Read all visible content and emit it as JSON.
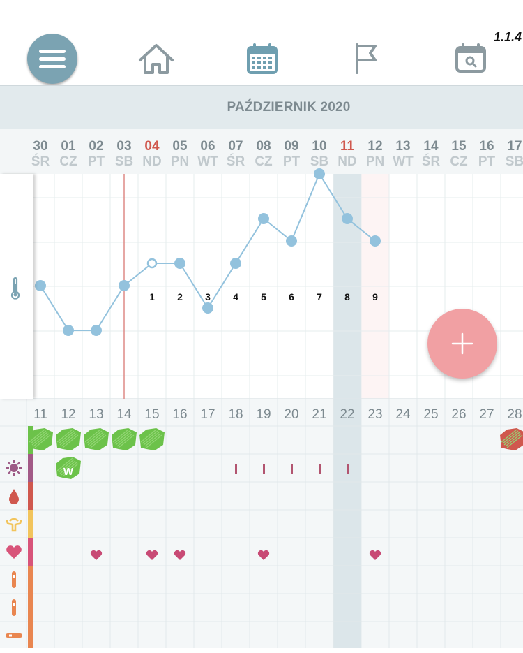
{
  "app": {
    "version": "1.1.4"
  },
  "nav": {
    "items": [
      "menu-icon",
      "home-icon",
      "calendar-icon",
      "flag-icon",
      "calendar-search-icon"
    ]
  },
  "month": {
    "label": "PAŹDZIERNIK 2020"
  },
  "days": [
    {
      "num": "30",
      "name": "ŚR"
    },
    {
      "num": "01",
      "name": "CZ"
    },
    {
      "num": "02",
      "name": "PT"
    },
    {
      "num": "03",
      "name": "SB"
    },
    {
      "num": "04",
      "name": "ND",
      "red": true
    },
    {
      "num": "05",
      "name": "PN"
    },
    {
      "num": "06",
      "name": "WT"
    },
    {
      "num": "07",
      "name": "ŚR"
    },
    {
      "num": "08",
      "name": "CZ"
    },
    {
      "num": "09",
      "name": "PT"
    },
    {
      "num": "10",
      "name": "SB"
    },
    {
      "num": "11",
      "name": "ND",
      "red": true
    },
    {
      "num": "12",
      "name": "PN"
    },
    {
      "num": "13",
      "name": "WT"
    },
    {
      "num": "14",
      "name": "ŚR"
    },
    {
      "num": "15",
      "name": "CZ"
    },
    {
      "num": "16",
      "name": "PT"
    },
    {
      "num": "17",
      "name": "SB"
    }
  ],
  "chart_data": {
    "type": "line",
    "temperature_levels": [
      3,
      1,
      1,
      3,
      4,
      4,
      2,
      4,
      6,
      5,
      8,
      6,
      5
    ],
    "open_point_index": 4,
    "cycle_day_labels": [
      "1",
      "2",
      "3",
      "4",
      "5",
      "6",
      "7",
      "8",
      "9"
    ],
    "cycle_label_start_index": 4
  },
  "cycle_days": [
    "11",
    "12",
    "13",
    "14",
    "15",
    "16",
    "17",
    "18",
    "19",
    "20",
    "21",
    "22",
    "23",
    "24",
    "25",
    "26",
    "27",
    "28"
  ],
  "rows": {
    "icons": [
      "virus-icon",
      "drop-icon",
      "uterus-icon",
      "heart-icon",
      "test-stick-icon",
      "test-stick-icon",
      "thermometer-horizontal-icon"
    ],
    "mucus_label": "W",
    "intercourse_hearts_cols": [
      1,
      3,
      4,
      7,
      11
    ],
    "mucus_marks_cols": [
      6,
      7,
      8,
      9,
      10
    ]
  },
  "colors": {
    "accent": "#7ba3b2",
    "line": "#93c2dd",
    "fab": "#f1a0a3",
    "green": "#6cc24a",
    "red": "#d0584e"
  }
}
